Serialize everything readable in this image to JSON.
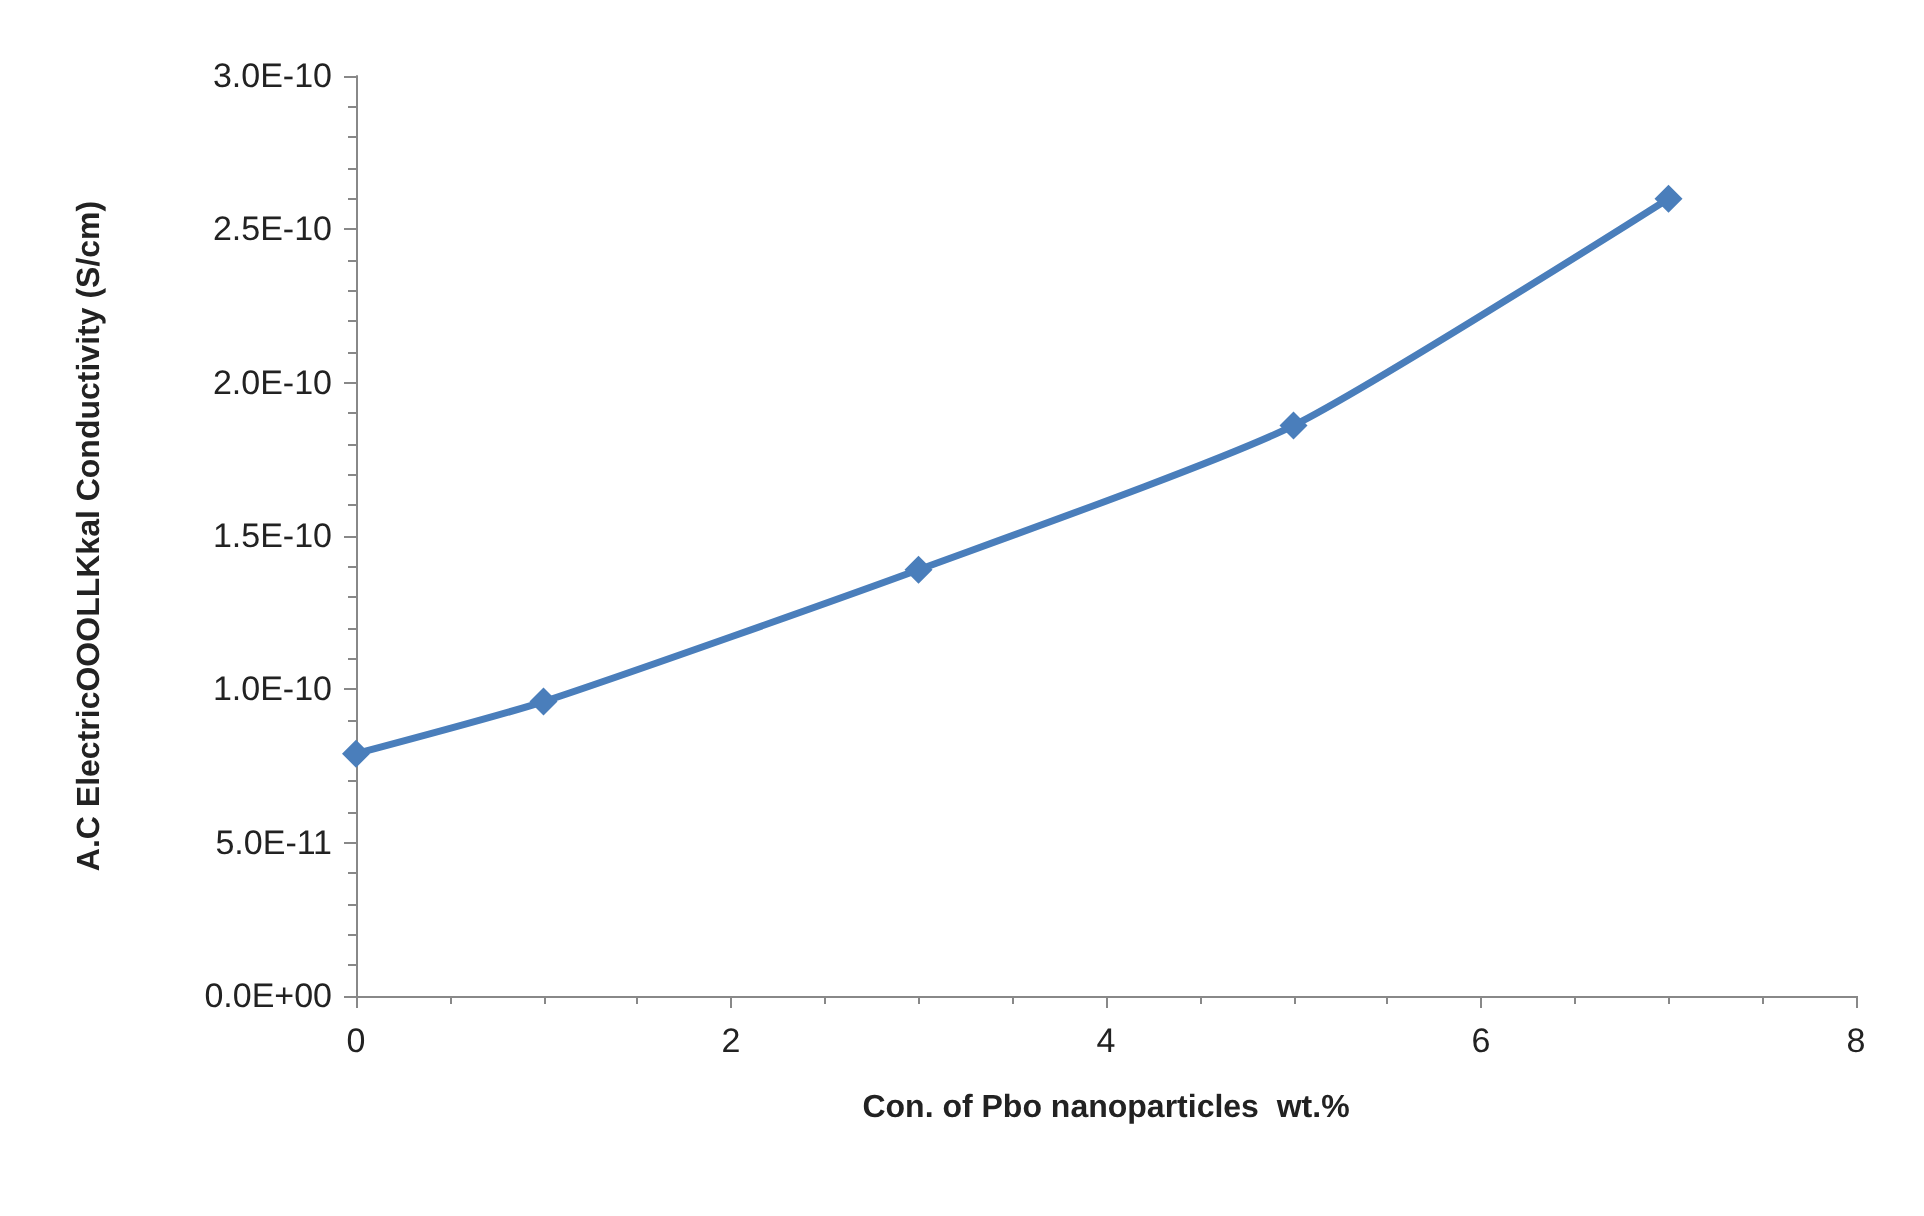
{
  "chart_data": {
    "type": "line",
    "xlabel": "Con. of Pbo nanoparticles  wt.%",
    "ylabel": "A.C ElectricOOOLLKkal Conductivity (S/cm)",
    "x": [
      0,
      1,
      3,
      5,
      7
    ],
    "series": [
      {
        "color": "#4a7ebb",
        "values": [
          7.9e-11,
          9.6e-11,
          1.39e-10,
          1.86e-10,
          2.6e-10
        ]
      }
    ],
    "xlim": [
      0,
      8
    ],
    "xticks": [
      0,
      2,
      4,
      6,
      8
    ],
    "ylim": [
      0,
      3e-10
    ],
    "yticks": [
      {
        "value": 0,
        "label": "0.0E+00"
      },
      {
        "value": 5e-11,
        "label": "5.0E-11"
      },
      {
        "value": 1e-10,
        "label": "1.0E-10"
      },
      {
        "value": 1.5e-10,
        "label": "1.5E-10"
      },
      {
        "value": 2e-10,
        "label": "2.0E-10"
      },
      {
        "value": 2.5e-10,
        "label": "2.5E-10"
      },
      {
        "value": 3e-10,
        "label": "3.0E-10"
      }
    ],
    "marker": "diamond",
    "grid": false
  }
}
